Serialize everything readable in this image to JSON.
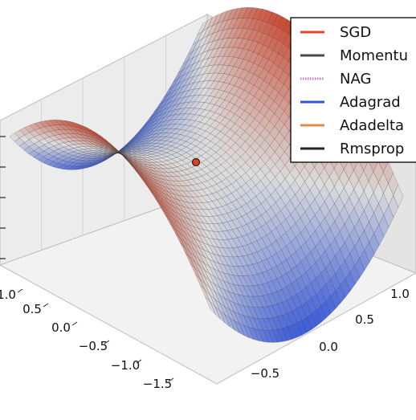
{
  "chart_data": {
    "type": "surface3d",
    "title": "",
    "xlabel": "",
    "ylabel": "",
    "zlabel": "",
    "surface": "saddle",
    "x_ticks": [
      "1.0",
      "0.5",
      "0.0",
      "−0.5",
      "−1.0",
      "−1.5"
    ],
    "y_ticks": [
      "1.0",
      "0.5",
      "0.0",
      "−0.5"
    ],
    "legend": {
      "position": "top-right",
      "entries": [
        {
          "name": "SGD",
          "color": "#e0472b",
          "style": "solid"
        },
        {
          "name": "Momentu",
          "color": "#4a4a4a",
          "style": "solid"
        },
        {
          "name": "NAG",
          "color": "#c77ad1",
          "style": "dotted"
        },
        {
          "name": "Adagrad",
          "color": "#2f56d6",
          "style": "solid"
        },
        {
          "name": "Adadelta",
          "color": "#e08a46",
          "style": "solid"
        },
        {
          "name": "Rmsprop",
          "color": "#222222",
          "style": "solid"
        }
      ]
    },
    "marker_color": "#d9412c",
    "colormap": {
      "low": "#3a5bd9",
      "mid": "#dcdcdc",
      "high": "#c9442c"
    }
  }
}
